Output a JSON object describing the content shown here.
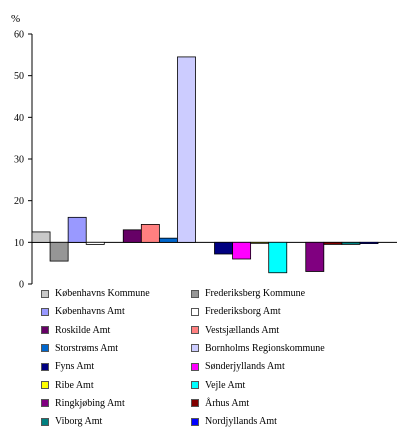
{
  "chart_data": {
    "type": "bar",
    "ylabel": "%",
    "ylim": [
      0,
      60
    ],
    "yticks": [
      0,
      10,
      20,
      30,
      40,
      50,
      60
    ],
    "baseline": 10,
    "grid": false,
    "legend_position": "bottom",
    "series": [
      {
        "name": "Københavns Kommune",
        "value": 12.5,
        "color": "#c8c8c8"
      },
      {
        "name": "Frederiksberg Kommune",
        "value": 5.5,
        "color": "#969696"
      },
      {
        "name": "Københavns Amt",
        "value": 16,
        "color": "#9999ff"
      },
      {
        "name": "Frederiksborg Amt",
        "value": 9.5,
        "color": "#ffffff"
      },
      {
        "name": "Roskilde Amt",
        "value": 13,
        "color": "#660066"
      },
      {
        "name": "Vestsjællands Amt",
        "value": 14.3,
        "color": "#ff8080"
      },
      {
        "name": "Storstrøms Amt",
        "value": 11,
        "color": "#0066cc"
      },
      {
        "name": "Bornholms Regionskommune",
        "value": 54.5,
        "color": "#ccccff"
      },
      {
        "name": "Fyns Amt",
        "value": 7.2,
        "color": "#000080"
      },
      {
        "name": "Sønderjyllands Amt",
        "value": 6,
        "color": "#ff00ff"
      },
      {
        "name": "Ribe Amt",
        "value": 10,
        "color": "#ffff00"
      },
      {
        "name": "Vejle Amt",
        "value": 2.7,
        "color": "#00ffff"
      },
      {
        "name": "Ringkjøbing Amt",
        "value": 3,
        "color": "#800080"
      },
      {
        "name": "Århus Amt",
        "value": 9.5,
        "color": "#800000"
      },
      {
        "name": "Viborg Amt",
        "value": 9.5,
        "color": "#008080"
      },
      {
        "name": "Nordjyllands Amt",
        "value": 9.7,
        "color": "#0000ff"
      }
    ]
  }
}
